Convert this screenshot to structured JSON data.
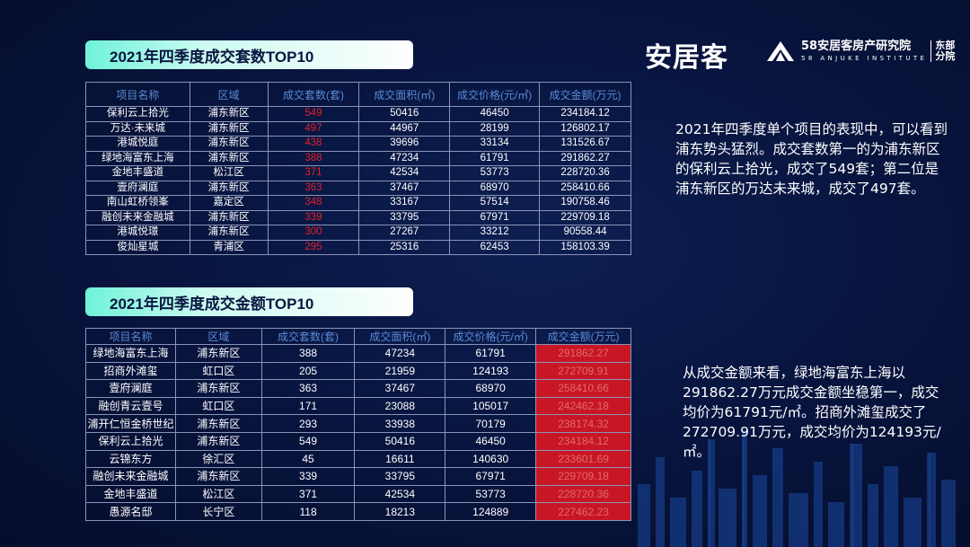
{
  "branding": {
    "anjuke_logo": "安居客",
    "institute_line1": "58安居客房产研究院",
    "institute_line2": "58 ANJUKE INSTITUTE",
    "institute_branch": "东部分院"
  },
  "section1": {
    "title": "2021年四季度成交套数TOP10",
    "headers": [
      "项目名称",
      "区域",
      "成交套数(套)",
      "成交面积(㎡)",
      "成交价格(元/㎡)",
      "成交金额(万元)"
    ],
    "rows": [
      [
        "保利云上拾光",
        "浦东新区",
        "549",
        "50416",
        "46450",
        "234184.12"
      ],
      [
        "万达·未来城",
        "浦东新区",
        "497",
        "44967",
        "28199",
        "126802.17"
      ],
      [
        "港城悦庭",
        "浦东新区",
        "438",
        "39696",
        "33134",
        "131526.67"
      ],
      [
        "绿地海富东上海",
        "浦东新区",
        "388",
        "47234",
        "61791",
        "291862.27"
      ],
      [
        "金地丰盛道",
        "松江区",
        "371",
        "42534",
        "53773",
        "228720.36"
      ],
      [
        "壹府澜庭",
        "浦东新区",
        "363",
        "37467",
        "68970",
        "258410.66"
      ],
      [
        "南山虹桥领峯",
        "嘉定区",
        "348",
        "33167",
        "57514",
        "190758.46"
      ],
      [
        "融创未来金融城",
        "浦东新区",
        "339",
        "33795",
        "67971",
        "229709.18"
      ],
      [
        "港城悦璟",
        "浦东新区",
        "300",
        "27267",
        "33212",
        "90558.44"
      ],
      [
        "俊灿星城",
        "青浦区",
        "295",
        "25316",
        "62453",
        "158103.39"
      ]
    ],
    "description": "2021年四季度单个项目的表现中，可以看到浦东势头猛烈。成交套数第一的为浦东新区的保利云上拾光，成交了549套；第二位是浦东新区的万达未来城，成交了497套。"
  },
  "section2": {
    "title": "2021年四季度成交金额TOP10",
    "headers": [
      "项目名称",
      "区域",
      "成交套数(套)",
      "成交面积(㎡)",
      "成交价格(元/㎡)",
      "成交金额(万元)"
    ],
    "rows": [
      [
        "绿地海富东上海",
        "浦东新区",
        "388",
        "47234",
        "61791",
        "291862.27"
      ],
      [
        "招商外滩玺",
        "虹口区",
        "205",
        "21959",
        "124193",
        "272709.91"
      ],
      [
        "壹府澜庭",
        "浦东新区",
        "363",
        "37467",
        "68970",
        "258410.66"
      ],
      [
        "融创青云壹号",
        "虹口区",
        "171",
        "23088",
        "105017",
        "242462.18"
      ],
      [
        "浦开仁恒金桥世纪",
        "浦东新区",
        "293",
        "33938",
        "70179",
        "238174.32"
      ],
      [
        "保利云上拾光",
        "浦东新区",
        "549",
        "50416",
        "46450",
        "234184.12"
      ],
      [
        "云锦东方",
        "徐汇区",
        "45",
        "16611",
        "140630",
        "233601.69"
      ],
      [
        "融创未来金融城",
        "浦东新区",
        "339",
        "33795",
        "67971",
        "229709.18"
      ],
      [
        "金地丰盛道",
        "松江区",
        "371",
        "42534",
        "53773",
        "228720.36"
      ],
      [
        "愚源名邸",
        "长宁区",
        "118",
        "18213",
        "124889",
        "227462.23"
      ]
    ],
    "description": "从成交金额来看，绿地海富东上海以291862.27万元成交金额坐稳第一，成交均价为61791元/㎡。招商外滩玺成交了272709.91万元，成交均价为124193元/㎡。"
  },
  "colors": {
    "highlight_red": "#e0202a",
    "highlight_bg": "#c81624",
    "header_blue": "#5a8bd6",
    "title_pill_start": "#6ff2d8"
  }
}
